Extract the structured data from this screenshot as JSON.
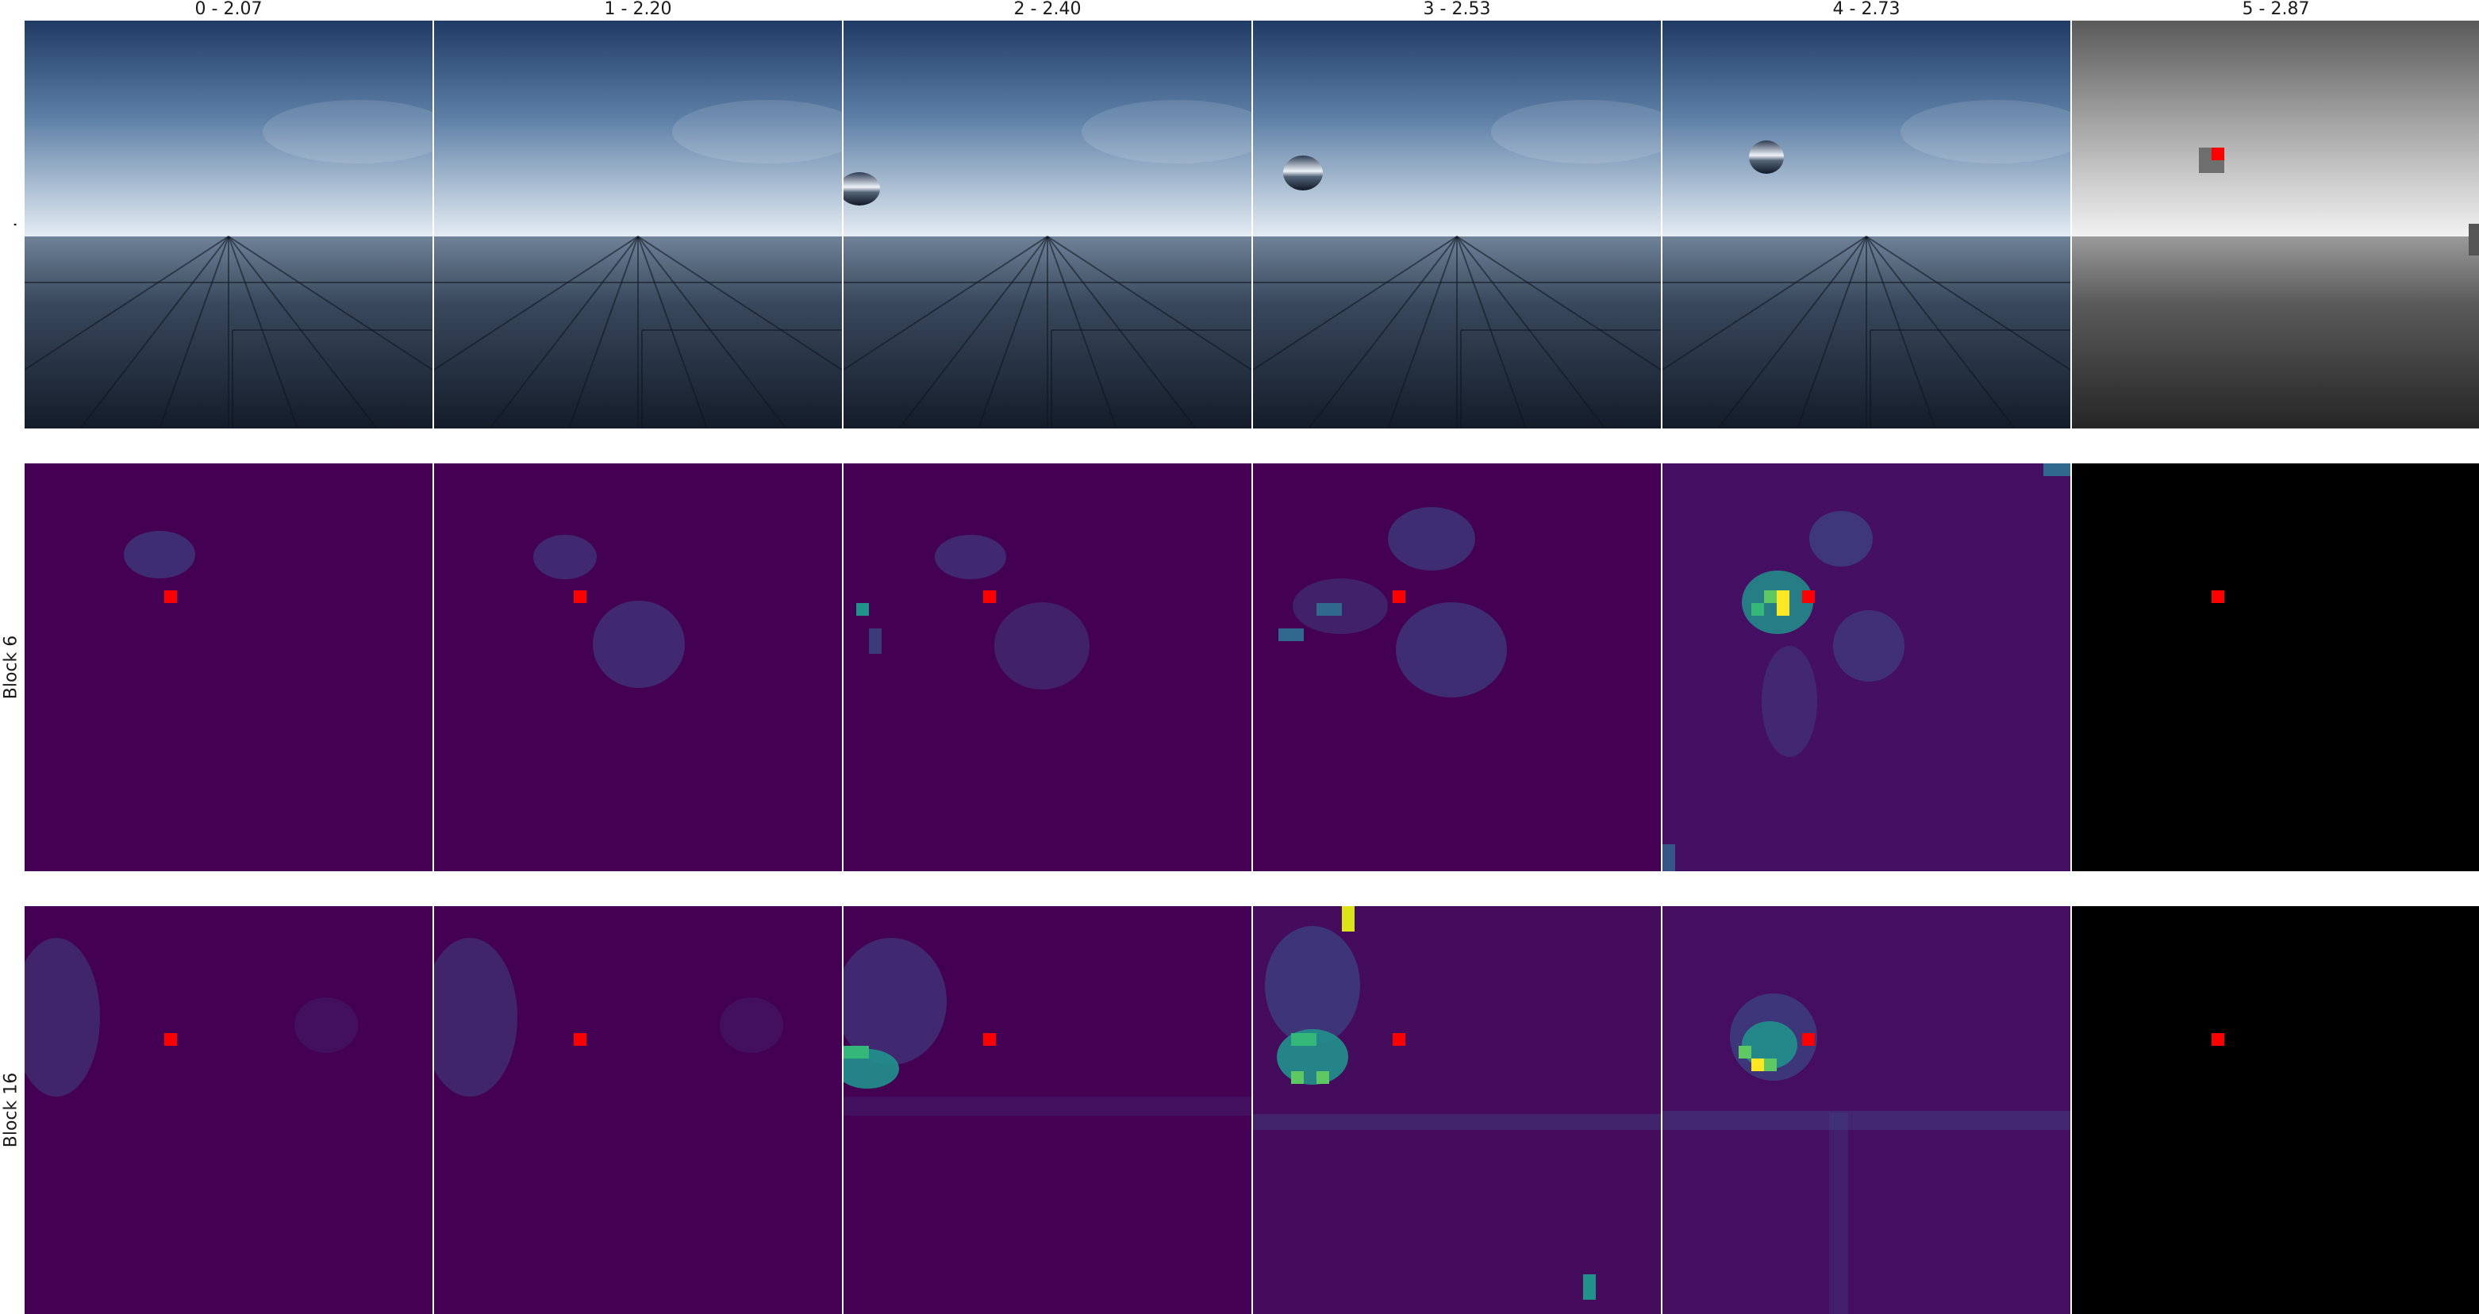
{
  "columns": [
    {
      "label": "0 - 2.07"
    },
    {
      "label": "1 - 2.20"
    },
    {
      "label": "2 - 2.40"
    },
    {
      "label": "3 - 2.53"
    },
    {
      "label": "4 - 2.73"
    },
    {
      "label": "5 - 2.87"
    }
  ],
  "rows": [
    {
      "label": "."
    },
    {
      "label": "Block 6"
    },
    {
      "label": "Block 16"
    }
  ],
  "colors": {
    "heatmap_base": "#440154",
    "query_marker": "#ff0000",
    "sky_top": "#1f3b66",
    "sky_horizon": "#e4ecf3",
    "floor": "#2a3546"
  }
}
